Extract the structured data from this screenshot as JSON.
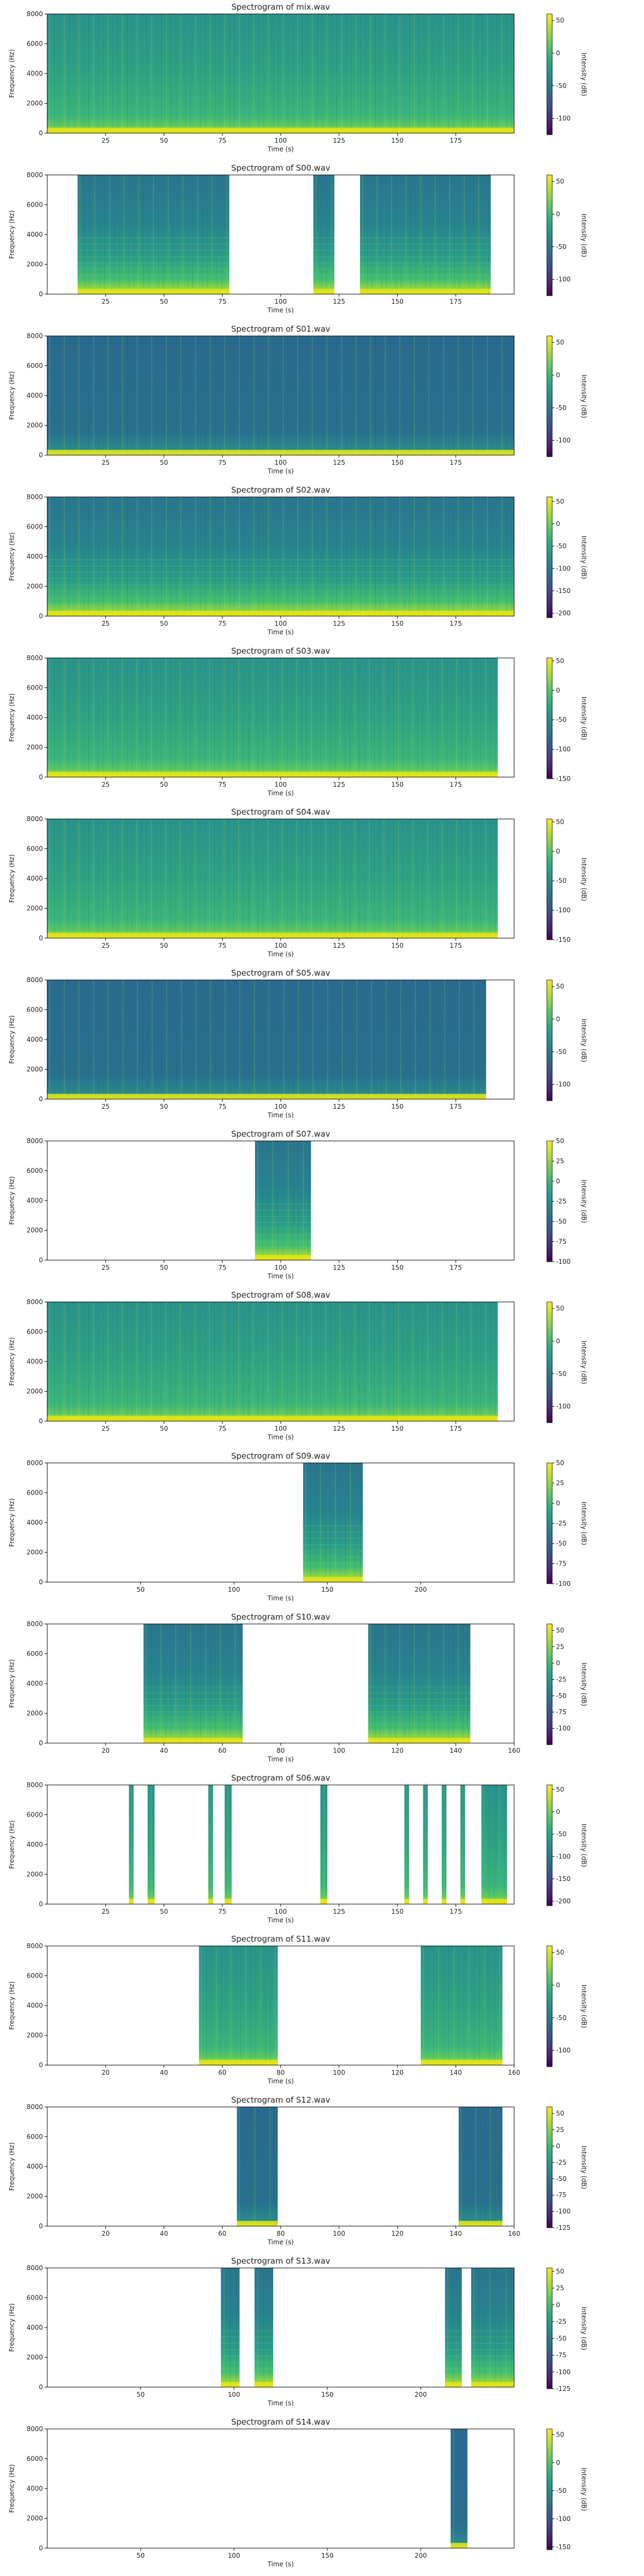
{
  "figure": {
    "background": "#ffffff"
  },
  "colors": {
    "viridis_low": "#440154",
    "viridis_mid": "#21918c",
    "viridis_high": "#fde725",
    "background_teal": "#2a6e8e",
    "mid_green": "#35b779"
  },
  "chart_data": [
    {
      "type": "heatmap",
      "title": "Spectrogram of mix.wav",
      "xlabel": "Time (s)",
      "ylabel": "Frequency (Hz)",
      "xlim": [
        0,
        200
      ],
      "ylim": [
        0,
        8000
      ],
      "xticks": [
        25,
        50,
        75,
        100,
        125,
        150,
        175
      ],
      "yticks": [
        0,
        2000,
        4000,
        6000,
        8000
      ],
      "colorbar": {
        "label": "Intensity (dB)",
        "range": [
          -125,
          60
        ],
        "ticks": [
          50,
          0,
          -50,
          -100
        ]
      },
      "active_segments": [
        [
          0,
          200
        ]
      ],
      "texture": "dense",
      "data_extent": 200
    },
    {
      "type": "heatmap",
      "title": "Spectrogram of S00.wav",
      "xlabel": "Time (s)",
      "ylabel": "Frequency (Hz)",
      "xlim": [
        0,
        200
      ],
      "ylim": [
        0,
        8000
      ],
      "xticks": [
        25,
        50,
        75,
        100,
        125,
        150,
        175
      ],
      "yticks": [
        0,
        2000,
        4000,
        6000,
        8000
      ],
      "colorbar": {
        "label": "Intensity (dB)",
        "range": [
          -125,
          60
        ],
        "ticks": [
          50,
          0,
          -50,
          -100
        ]
      },
      "active_segments": [
        [
          13,
          78
        ],
        [
          114,
          123
        ],
        [
          134,
          190
        ]
      ],
      "texture": "harmonic",
      "data_extent": 190
    },
    {
      "type": "heatmap",
      "title": "Spectrogram of S01.wav",
      "xlabel": "Time (s)",
      "ylabel": "Frequency (Hz)",
      "xlim": [
        0,
        200
      ],
      "ylim": [
        0,
        8000
      ],
      "xticks": [
        25,
        50,
        75,
        100,
        125,
        150,
        175
      ],
      "yticks": [
        0,
        2000,
        4000,
        6000,
        8000
      ],
      "colorbar": {
        "label": "Intensity (dB)",
        "range": [
          -125,
          60
        ],
        "ticks": [
          50,
          0,
          -50,
          -100
        ]
      },
      "active_segments": [
        [
          0,
          200
        ]
      ],
      "texture": "sparse",
      "data_extent": 200
    },
    {
      "type": "heatmap",
      "title": "Spectrogram of S02.wav",
      "xlabel": "Time (s)",
      "ylabel": "Frequency (Hz)",
      "xlim": [
        0,
        200
      ],
      "ylim": [
        0,
        8000
      ],
      "xticks": [
        25,
        50,
        75,
        100,
        125,
        150,
        175
      ],
      "yticks": [
        0,
        2000,
        4000,
        6000,
        8000
      ],
      "colorbar": {
        "label": "Intensity (dB)",
        "range": [
          -210,
          60
        ],
        "ticks": [
          50,
          0,
          -50,
          -100,
          -150,
          -200
        ]
      },
      "active_segments": [
        [
          0,
          200
        ]
      ],
      "texture": "harmonic",
      "data_extent": 200
    },
    {
      "type": "heatmap",
      "title": "Spectrogram of S03.wav",
      "xlabel": "Time (s)",
      "ylabel": "Frequency (Hz)",
      "xlim": [
        0,
        200
      ],
      "ylim": [
        0,
        8000
      ],
      "xticks": [
        25,
        50,
        75,
        100,
        125,
        150,
        175
      ],
      "yticks": [
        0,
        2000,
        4000,
        6000,
        8000
      ],
      "colorbar": {
        "label": "Intensity (dB)",
        "range": [
          -150,
          55
        ],
        "ticks": [
          50,
          0,
          -50,
          -100,
          -150
        ]
      },
      "active_segments": [
        [
          0,
          193
        ]
      ],
      "texture": "dense",
      "data_extent": 193
    },
    {
      "type": "heatmap",
      "title": "Spectrogram of S04.wav",
      "xlabel": "Time (s)",
      "ylabel": "Frequency (Hz)",
      "xlim": [
        0,
        200
      ],
      "ylim": [
        0,
        8000
      ],
      "xticks": [
        25,
        50,
        75,
        100,
        125,
        150,
        175
      ],
      "yticks": [
        0,
        2000,
        4000,
        6000,
        8000
      ],
      "colorbar": {
        "label": "Intensity (dB)",
        "range": [
          -150,
          55
        ],
        "ticks": [
          50,
          0,
          -50,
          -100,
          -150
        ]
      },
      "active_segments": [
        [
          0,
          193
        ]
      ],
      "texture": "dense",
      "data_extent": 193
    },
    {
      "type": "heatmap",
      "title": "Spectrogram of S05.wav",
      "xlabel": "Time (s)",
      "ylabel": "Frequency (Hz)",
      "xlim": [
        0,
        200
      ],
      "ylim": [
        0,
        8000
      ],
      "xticks": [
        25,
        50,
        75,
        100,
        125,
        150,
        175
      ],
      "yticks": [
        0,
        2000,
        4000,
        6000,
        8000
      ],
      "colorbar": {
        "label": "Intensity (dB)",
        "range": [
          -125,
          60
        ],
        "ticks": [
          50,
          0,
          -50,
          -100
        ]
      },
      "active_segments": [
        [
          0,
          188
        ]
      ],
      "texture": "sparse",
      "data_extent": 188
    },
    {
      "type": "heatmap",
      "title": "Spectrogram of S07.wav",
      "xlabel": "Time (s)",
      "ylabel": "Frequency (Hz)",
      "xlim": [
        0,
        200
      ],
      "ylim": [
        0,
        8000
      ],
      "xticks": [
        25,
        50,
        75,
        100,
        125,
        150,
        175
      ],
      "yticks": [
        0,
        2000,
        4000,
        6000,
        8000
      ],
      "colorbar": {
        "label": "Intensity (dB)",
        "range": [
          -100,
          50
        ],
        "ticks": [
          50,
          25,
          0,
          -25,
          -50,
          -75,
          -100
        ]
      },
      "active_segments": [
        [
          89,
          113
        ]
      ],
      "texture": "harmonic",
      "data_extent": 200
    },
    {
      "type": "heatmap",
      "title": "Spectrogram of S08.wav",
      "xlabel": "Time (s)",
      "ylabel": "Frequency (Hz)",
      "xlim": [
        0,
        200
      ],
      "ylim": [
        0,
        8000
      ],
      "xticks": [
        25,
        50,
        75,
        100,
        125,
        150,
        175
      ],
      "yticks": [
        0,
        2000,
        4000,
        6000,
        8000
      ],
      "colorbar": {
        "label": "Intensity (dB)",
        "range": [
          -125,
          60
        ],
        "ticks": [
          50,
          0,
          -50,
          -100
        ]
      },
      "active_segments": [
        [
          0,
          193
        ]
      ],
      "texture": "dense",
      "data_extent": 193
    },
    {
      "type": "heatmap",
      "title": "Spectrogram of S09.wav",
      "xlabel": "Time (s)",
      "ylabel": "Frequency (Hz)",
      "xlim": [
        0,
        250
      ],
      "ylim": [
        0,
        8000
      ],
      "xticks": [
        50,
        100,
        150,
        200
      ],
      "yticks": [
        0,
        2000,
        4000,
        6000,
        8000
      ],
      "colorbar": {
        "label": "Intensity (dB)",
        "range": [
          -100,
          50
        ],
        "ticks": [
          50,
          25,
          0,
          -25,
          -50,
          -75,
          -100
        ]
      },
      "active_segments": [
        [
          137,
          169
        ]
      ],
      "texture": "harmonic",
      "data_extent": 250
    },
    {
      "type": "heatmap",
      "title": "Spectrogram of S10.wav",
      "xlabel": "Time (s)",
      "ylabel": "Frequency (Hz)",
      "xlim": [
        0,
        160
      ],
      "ylim": [
        0,
        8000
      ],
      "xticks": [
        20,
        40,
        60,
        80,
        100,
        120,
        140,
        160
      ],
      "yticks": [
        0,
        2000,
        4000,
        6000,
        8000
      ],
      "colorbar": {
        "label": "Intensity (dB)",
        "range": [
          -125,
          60
        ],
        "ticks": [
          50,
          25,
          0,
          -25,
          -50,
          -75,
          -100
        ]
      },
      "active_segments": [
        [
          33,
          67
        ],
        [
          110,
          145
        ]
      ],
      "texture": "harmonic",
      "data_extent": 160
    },
    {
      "type": "heatmap",
      "title": "Spectrogram of S06.wav",
      "xlabel": "Time (s)",
      "ylabel": "Frequency (Hz)",
      "xlim": [
        0,
        200
      ],
      "ylim": [
        0,
        8000
      ],
      "xticks": [
        25,
        50,
        75,
        100,
        125,
        150,
        175
      ],
      "yticks": [
        0,
        2000,
        4000,
        6000,
        8000
      ],
      "colorbar": {
        "label": "Intensity (dB)",
        "range": [
          -210,
          60
        ],
        "ticks": [
          50,
          0,
          -50,
          -100,
          -150,
          -200
        ]
      },
      "active_segments": [
        [
          35,
          37
        ],
        [
          43,
          46
        ],
        [
          69,
          71
        ],
        [
          76,
          79
        ],
        [
          117,
          120
        ],
        [
          153,
          155
        ],
        [
          161,
          163
        ],
        [
          169,
          171
        ],
        [
          177,
          179
        ],
        [
          186,
          197
        ]
      ],
      "texture": "dense",
      "data_extent": 200
    },
    {
      "type": "heatmap",
      "title": "Spectrogram of S11.wav",
      "xlabel": "Time (s)",
      "ylabel": "Frequency (Hz)",
      "xlim": [
        0,
        160
      ],
      "ylim": [
        0,
        8000
      ],
      "xticks": [
        20,
        40,
        60,
        80,
        100,
        120,
        140,
        160
      ],
      "yticks": [
        0,
        2000,
        4000,
        6000,
        8000
      ],
      "colorbar": {
        "label": "Intensity (dB)",
        "range": [
          -125,
          60
        ],
        "ticks": [
          50,
          0,
          -50,
          -100
        ]
      },
      "active_segments": [
        [
          52,
          79
        ],
        [
          128,
          156
        ]
      ],
      "texture": "dense",
      "data_extent": 160
    },
    {
      "type": "heatmap",
      "title": "Spectrogram of S12.wav",
      "xlabel": "Time (s)",
      "ylabel": "Frequency (Hz)",
      "xlim": [
        0,
        160
      ],
      "ylim": [
        0,
        8000
      ],
      "xticks": [
        20,
        40,
        60,
        80,
        100,
        120,
        140,
        160
      ],
      "yticks": [
        0,
        2000,
        4000,
        6000,
        8000
      ],
      "colorbar": {
        "label": "Intensity (dB)",
        "range": [
          -125,
          60
        ],
        "ticks": [
          50,
          25,
          0,
          -25,
          -50,
          -75,
          -100,
          -125
        ]
      },
      "active_segments": [
        [
          65,
          79
        ],
        [
          141,
          156
        ]
      ],
      "texture": "sparse",
      "data_extent": 160
    },
    {
      "type": "heatmap",
      "title": "Spectrogram of S13.wav",
      "xlabel": "Time (s)",
      "ylabel": "Frequency (Hz)",
      "xlim": [
        0,
        250
      ],
      "ylim": [
        0,
        8000
      ],
      "xticks": [
        50,
        100,
        150,
        200
      ],
      "yticks": [
        0,
        2000,
        4000,
        6000,
        8000
      ],
      "colorbar": {
        "label": "Intensity (dB)",
        "range": [
          -125,
          55
        ],
        "ticks": [
          50,
          25,
          0,
          -25,
          -50,
          -75,
          -100,
          -125
        ]
      },
      "active_segments": [
        [
          93,
          103
        ],
        [
          111,
          121
        ],
        [
          213,
          222
        ],
        [
          227,
          250
        ]
      ],
      "texture": "harmonic",
      "data_extent": 250
    },
    {
      "type": "heatmap",
      "title": "Spectrogram of S14.wav",
      "xlabel": "Time (s)",
      "ylabel": "Frequency (Hz)",
      "xlim": [
        0,
        250
      ],
      "ylim": [
        0,
        8000
      ],
      "xticks": [
        50,
        100,
        150,
        200
      ],
      "yticks": [
        0,
        2000,
        4000,
        6000,
        8000
      ],
      "colorbar": {
        "label": "Intensity (dB)",
        "range": [
          -155,
          60
        ],
        "ticks": [
          50,
          0,
          -50,
          -100,
          -150
        ]
      },
      "active_segments": [
        [
          216,
          225
        ]
      ],
      "texture": "sparse",
      "data_extent": 250
    }
  ]
}
